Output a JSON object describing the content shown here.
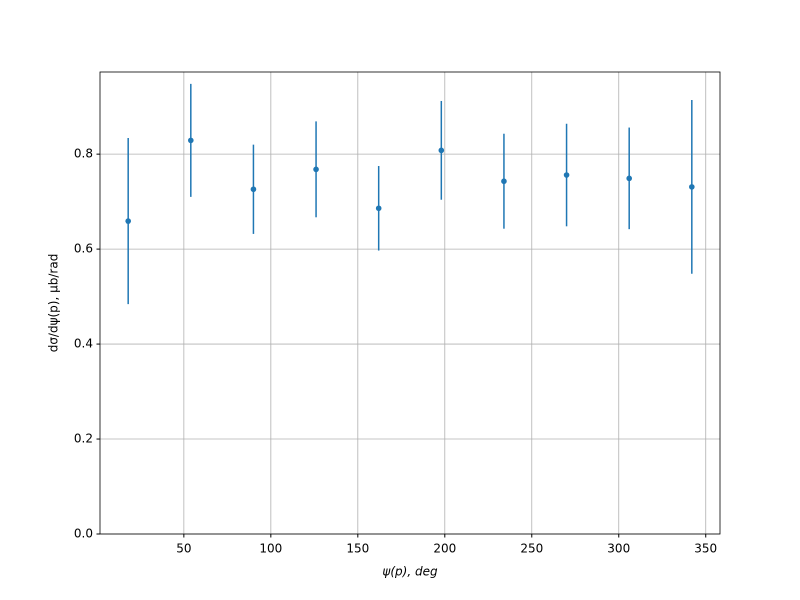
{
  "chart_data": {
    "type": "errorbar",
    "xlabel": "ψ(p), deg",
    "ylabel": "dσ/dψ(p), μb/rad",
    "x": [
      18,
      54,
      90,
      126,
      162,
      198,
      234,
      270,
      306,
      342
    ],
    "values": [
      0.659,
      0.829,
      0.726,
      0.768,
      0.686,
      0.808,
      0.743,
      0.756,
      0.749,
      0.731
    ],
    "errors": [
      0.175,
      0.119,
      0.094,
      0.101,
      0.089,
      0.104,
      0.1,
      0.108,
      0.107,
      0.183
    ],
    "color": "#1f77b4",
    "xlim": [
      1.8,
      358.2
    ],
    "ylim": [
      0,
      0.973
    ],
    "xticks": [
      50,
      100,
      150,
      200,
      250,
      300,
      350
    ],
    "yticks": [
      {
        "value": 0,
        "label": "0.0"
      },
      0.2,
      0.4,
      0.6,
      0.8
    ],
    "grid": true
  }
}
